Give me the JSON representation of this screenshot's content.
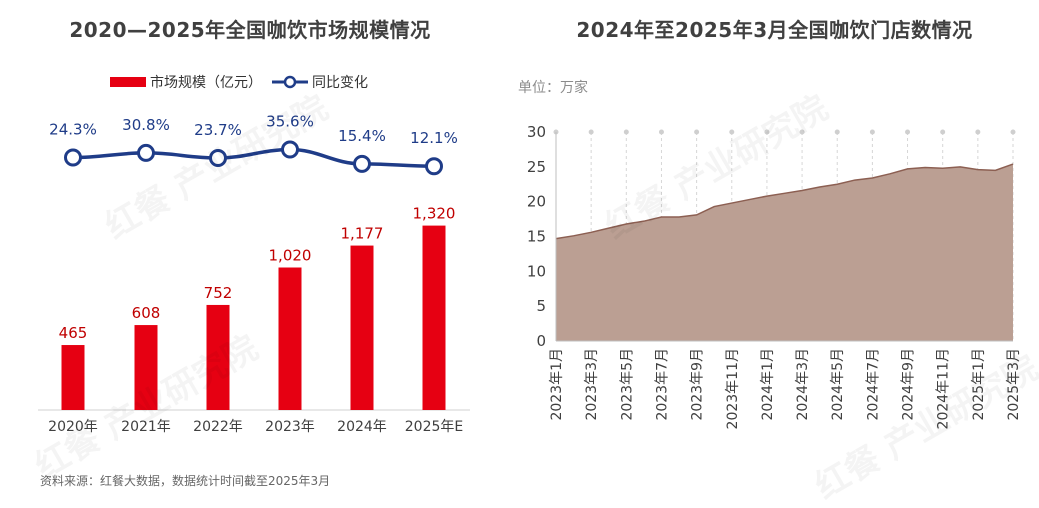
{
  "source_note": "资料来源：红餐大数据，数据统计时间截至2025年3月",
  "watermark_text": "红餐 产业研究院",
  "colors": {
    "bar": "#e60012",
    "line": "#1f3c88",
    "area": "#bb9f93",
    "area_stroke": "#8c5f52",
    "value_label": "#c00000"
  },
  "chart_data": [
    {
      "type": "bar",
      "title": "2020—2025年全国咖饮市场规模情况",
      "categories": [
        "2020年",
        "2021年",
        "2022年",
        "2023年",
        "2024年",
        "2025年E"
      ],
      "series": [
        {
          "name": "市场规模（亿元）",
          "type": "bar",
          "values": [
            465,
            608,
            752,
            1020,
            1177,
            1320
          ],
          "labels": [
            "465",
            "608",
            "752",
            "1,020",
            "1,177",
            "1,320"
          ]
        },
        {
          "name": "同比变化",
          "type": "line",
          "values": [
            24.3,
            30.8,
            23.7,
            35.6,
            15.4,
            12.1
          ],
          "labels": [
            "24.3%",
            "30.8%",
            "23.7%",
            "35.6%",
            "15.4%",
            "12.1%"
          ]
        }
      ],
      "legend": [
        "市场规模（亿元）",
        "同比变化"
      ],
      "legend_position": "top",
      "grid": false
    },
    {
      "type": "area",
      "title": "2024年至2025年3月全国咖饮门店数情况",
      "unit": "单位：万家",
      "ylim": [
        0,
        30
      ],
      "yticks": [
        0,
        5,
        10,
        15,
        20,
        25,
        30
      ],
      "x_tick_labels": [
        "2023年1月",
        "2023年3月",
        "2023年5月",
        "2023年7月",
        "2023年9月",
        "2023年11月",
        "2024年1月",
        "2024年3月",
        "2024年5月",
        "2024年7月",
        "2024年9月",
        "2024年11月",
        "2025年1月",
        "2025年3月"
      ],
      "x": [
        "2023年1月",
        "2023年2月",
        "2023年3月",
        "2023年4月",
        "2023年5月",
        "2023年6月",
        "2023年7月",
        "2023年8月",
        "2023年9月",
        "2023年10月",
        "2023年11月",
        "2023年12月",
        "2024年1月",
        "2024年2月",
        "2024年3月",
        "2024年4月",
        "2024年5月",
        "2024年6月",
        "2024年7月",
        "2024年8月",
        "2024年9月",
        "2024年10月",
        "2024年11月",
        "2024年12月",
        "2025年1月",
        "2025年2月",
        "2025年3月"
      ],
      "values": [
        14.7,
        15.1,
        15.6,
        16.2,
        16.8,
        17.2,
        17.8,
        17.8,
        18.1,
        19.3,
        19.8,
        20.3,
        20.8,
        21.2,
        21.6,
        22.1,
        22.5,
        23.1,
        23.4,
        24.0,
        24.7,
        24.9,
        24.8,
        25.0,
        24.6,
        24.5,
        25.4
      ],
      "grid": "vertical dashed at labeled months"
    }
  ]
}
